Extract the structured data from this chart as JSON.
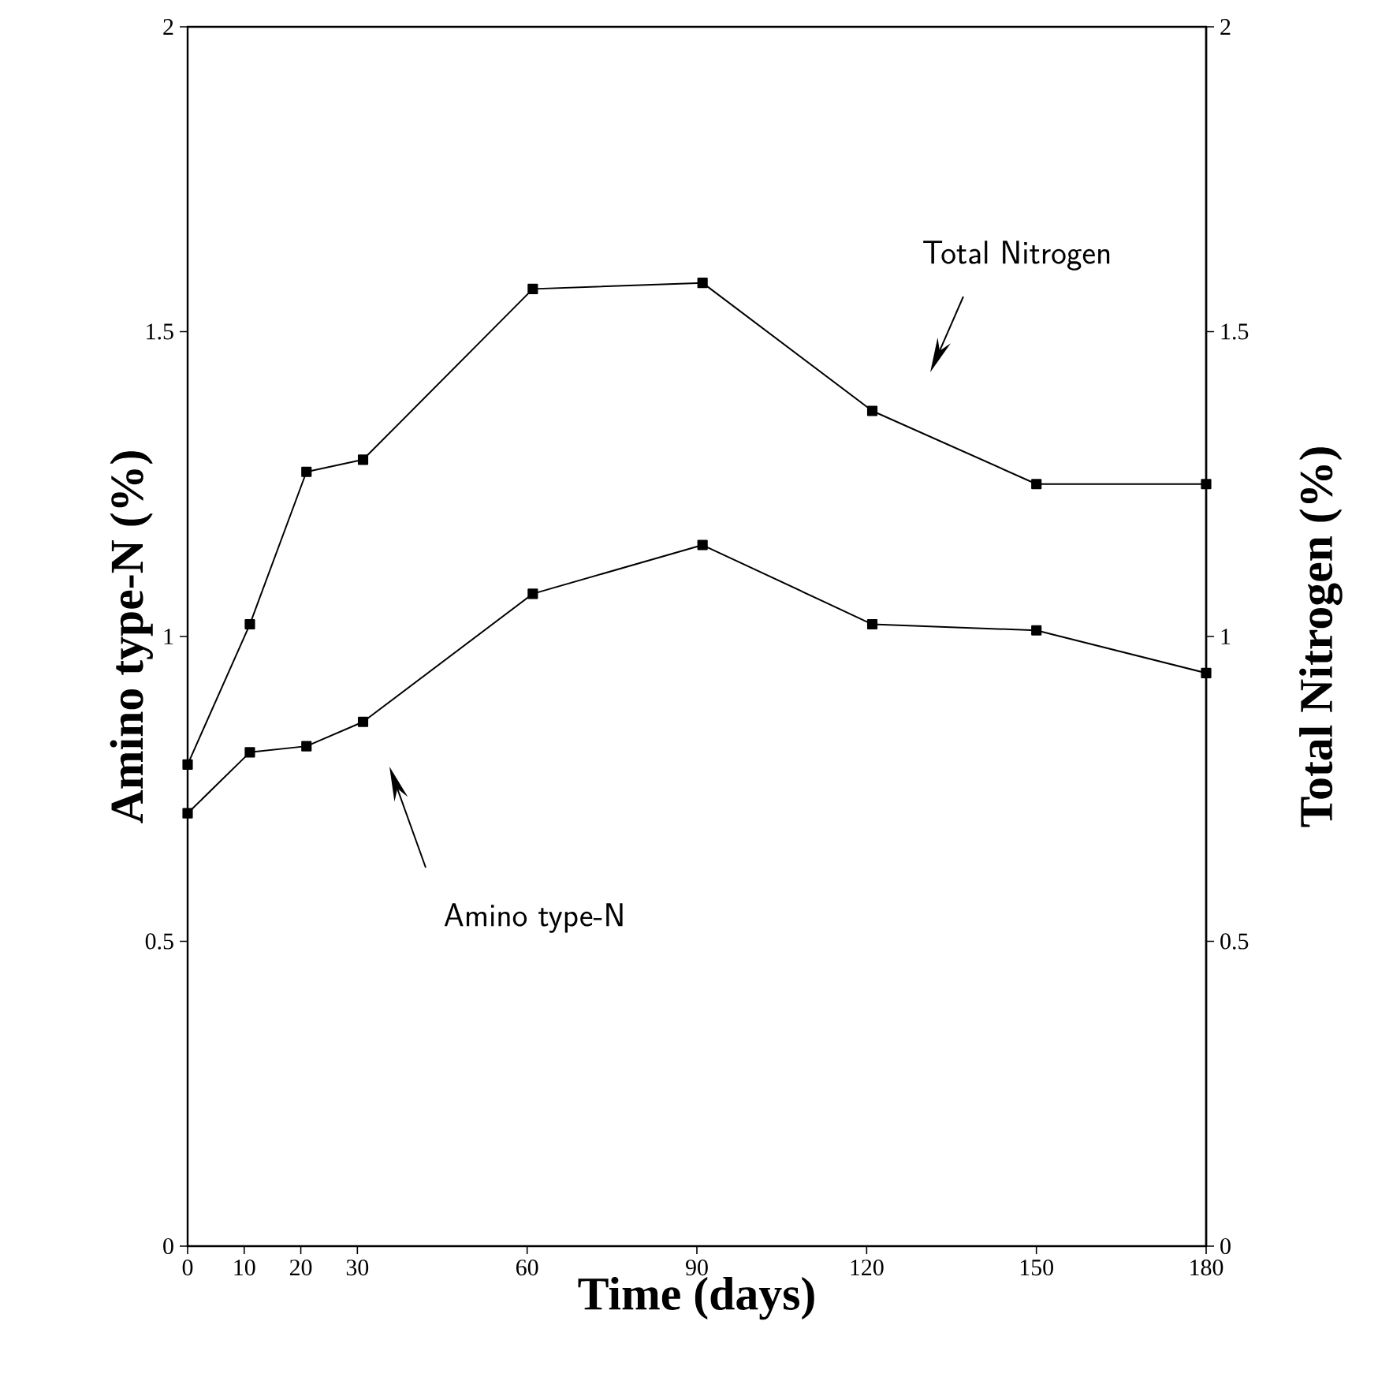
{
  "chart_data": {
    "type": "line",
    "xlabel": "Time (days)",
    "ylabel": "Amino type-N (%)",
    "y2label": "Total Nitrogen (%)",
    "xlim": [
      0,
      180
    ],
    "xticks": [
      0,
      10,
      20,
      30,
      60,
      90,
      120,
      150,
      180
    ],
    "ylim": [
      0,
      2
    ],
    "yticks": [
      0,
      0.5,
      1,
      1.5,
      2
    ],
    "y2lim": [
      0,
      2
    ],
    "y2ticks": [
      0,
      0.5,
      1,
      1.5,
      2
    ],
    "marker": "square",
    "line_style": "solid",
    "grid": false,
    "series": [
      {
        "color": "#000000",
        "axis": "y2",
        "x": [
          0,
          11,
          21,
          31,
          61,
          91,
          121,
          150,
          180
        ],
        "values": [
          0.79,
          1.02,
          1.27,
          1.29,
          1.57,
          1.58,
          1.37,
          1.25,
          1.25
        ]
      },
      {
        "color": "#000000",
        "x": [
          0,
          11,
          21,
          31,
          61,
          91,
          121,
          150,
          180
        ],
        "values": [
          0.71,
          0.81,
          0.82,
          0.86,
          1.07,
          1.15,
          1.02,
          1.01,
          0.94
        ]
      }
    ],
    "annotations": [
      "Total Nitrogen",
      "Amino type-N"
    ]
  }
}
